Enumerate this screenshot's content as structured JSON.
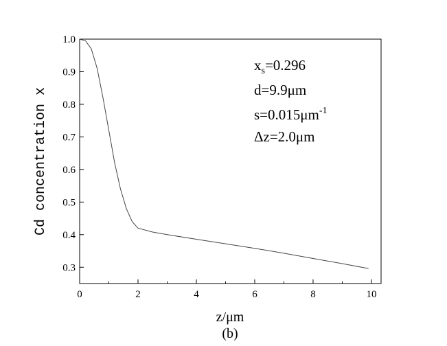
{
  "chart_data": {
    "type": "line",
    "x_label": "z/μm",
    "y_label": "Cd concentration x",
    "caption": "(b)",
    "x": [
      0,
      0.2,
      0.4,
      0.6,
      0.8,
      1.0,
      1.2,
      1.4,
      1.6,
      1.8,
      2.0,
      2.5,
      3,
      4,
      5,
      6,
      7,
      8,
      9,
      9.9
    ],
    "series": [
      {
        "color": "#444444",
        "values": [
          1.0,
          0.995,
          0.97,
          0.91,
          0.82,
          0.72,
          0.62,
          0.54,
          0.48,
          0.44,
          0.42,
          0.408,
          0.4,
          0.386,
          0.372,
          0.358,
          0.343,
          0.327,
          0.311,
          0.296
        ]
      }
    ],
    "xlim": [
      0,
      10.33
    ],
    "ylim": [
      0.25,
      1.0
    ],
    "xticks": [
      0,
      2,
      4,
      6,
      8,
      10
    ],
    "xminorticks": [
      1,
      3,
      5,
      7,
      9
    ],
    "yticks": [
      0.3,
      0.4,
      0.5,
      0.6,
      0.7,
      0.8,
      0.9,
      {
        "value": 1.0,
        "label": "1.0"
      }
    ],
    "annotations": [
      [
        {
          "text": "x"
        },
        {
          "text": "s",
          "shift": "sub"
        },
        {
          "text": "=0.296"
        }
      ],
      [
        {
          "text": "d=9.9μm"
        }
      ],
      [
        {
          "text": "s=0.015μm"
        },
        {
          "text": "-1",
          "shift": "super"
        }
      ],
      [
        {
          "text": "Δz=2.0μm"
        }
      ]
    ]
  }
}
